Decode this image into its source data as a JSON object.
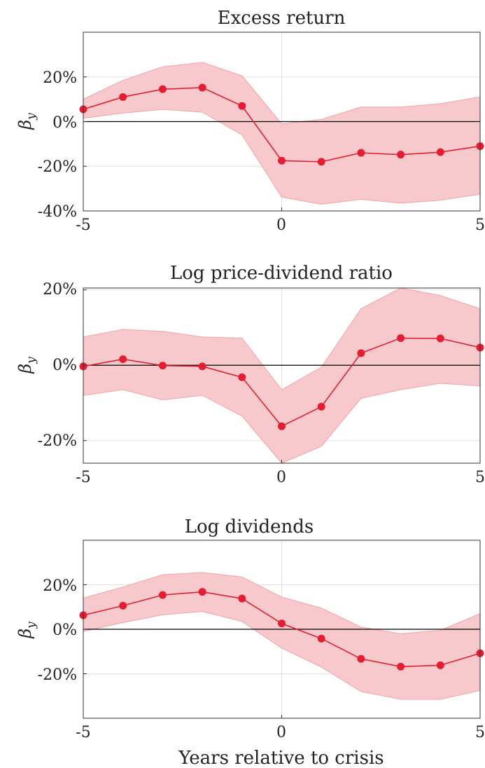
{
  "colors": {
    "line": "#e0202e",
    "marker": "#e51d33",
    "band": "#f8c9cc",
    "band_edge": "#f2a3a8",
    "grid": "#e3e3e3",
    "zero": "#000000",
    "axis": "#333333"
  },
  "chart_data": [
    {
      "type": "line",
      "title": "Excess return",
      "ylabel": "β_y",
      "xlabel": "",
      "x": [
        -5,
        -4,
        -3,
        -2,
        -1,
        0,
        1,
        2,
        3,
        4,
        5
      ],
      "xlim": [
        -5,
        5
      ],
      "ylim": [
        -40,
        40
      ],
      "xticks": [
        "-5",
        "0",
        "5"
      ],
      "yticks": [
        "20%",
        "0%",
        "-20%",
        "-40%"
      ],
      "series": [
        {
          "values": [
            5.5,
            11,
            14.5,
            15.2,
            7,
            -17.5,
            -18,
            -14,
            -14.8,
            -13.7,
            -11
          ],
          "lower": [
            1.5,
            3.8,
            5.5,
            4.2,
            -6,
            -33.8,
            -37,
            -34.8,
            -36.5,
            -35.2,
            -32.5
          ],
          "upper": [
            10,
            18.5,
            24.5,
            26.5,
            20.5,
            -1,
            1,
            6.5,
            6.5,
            8,
            11
          ]
        }
      ]
    },
    {
      "type": "line",
      "title": "Log price-dividend ratio",
      "ylabel": "β_y",
      "xlabel": "",
      "x": [
        -5,
        -4,
        -3,
        -2,
        -1,
        0,
        1,
        2,
        3,
        4,
        5
      ],
      "xlim": [
        -5,
        5
      ],
      "ylim": [
        -26,
        20.5
      ],
      "xticks": [
        "-5",
        "0",
        "5"
      ],
      "yticks": [
        "20%",
        "0%",
        "-20%"
      ],
      "series": [
        {
          "values": [
            -0.3,
            1.6,
            -0.1,
            -0.3,
            -3.2,
            -16.2,
            -11,
            3.2,
            7.2,
            7.1,
            4.7
          ],
          "lower": [
            -8,
            -6.5,
            -9.2,
            -8,
            -13.5,
            -26,
            -21.5,
            -8.8,
            -6.5,
            -4.8,
            -5.5
          ],
          "upper": [
            7.5,
            9.5,
            9,
            7.5,
            7.2,
            -6.5,
            -0.5,
            15,
            20.5,
            18.5,
            15
          ]
        }
      ]
    },
    {
      "type": "line",
      "title": "Log dividends",
      "ylabel": "β_y",
      "xlabel": "Years relative to crisis",
      "x": [
        -5,
        -4,
        -3,
        -2,
        -1,
        0,
        1,
        2,
        3,
        4,
        5
      ],
      "xlim": [
        -5,
        5
      ],
      "ylim": [
        -40,
        40
      ],
      "xticks": [
        "-5",
        "0",
        "5"
      ],
      "yticks": [
        "20%",
        "0%",
        "-20%"
      ],
      "series": [
        {
          "values": [
            6.3,
            10.6,
            15.4,
            16.8,
            13.8,
            2.6,
            -4.2,
            -13.3,
            -16.8,
            -16.2,
            -10.8
          ],
          "lower": [
            -1,
            3,
            6.5,
            8,
            3.5,
            -8.5,
            -17,
            -28,
            -31.5,
            -31.5,
            -27.5
          ],
          "upper": [
            14,
            19,
            24.5,
            25.5,
            23.5,
            14.5,
            9.5,
            1,
            -2,
            -0.5,
            7
          ]
        }
      ]
    }
  ]
}
